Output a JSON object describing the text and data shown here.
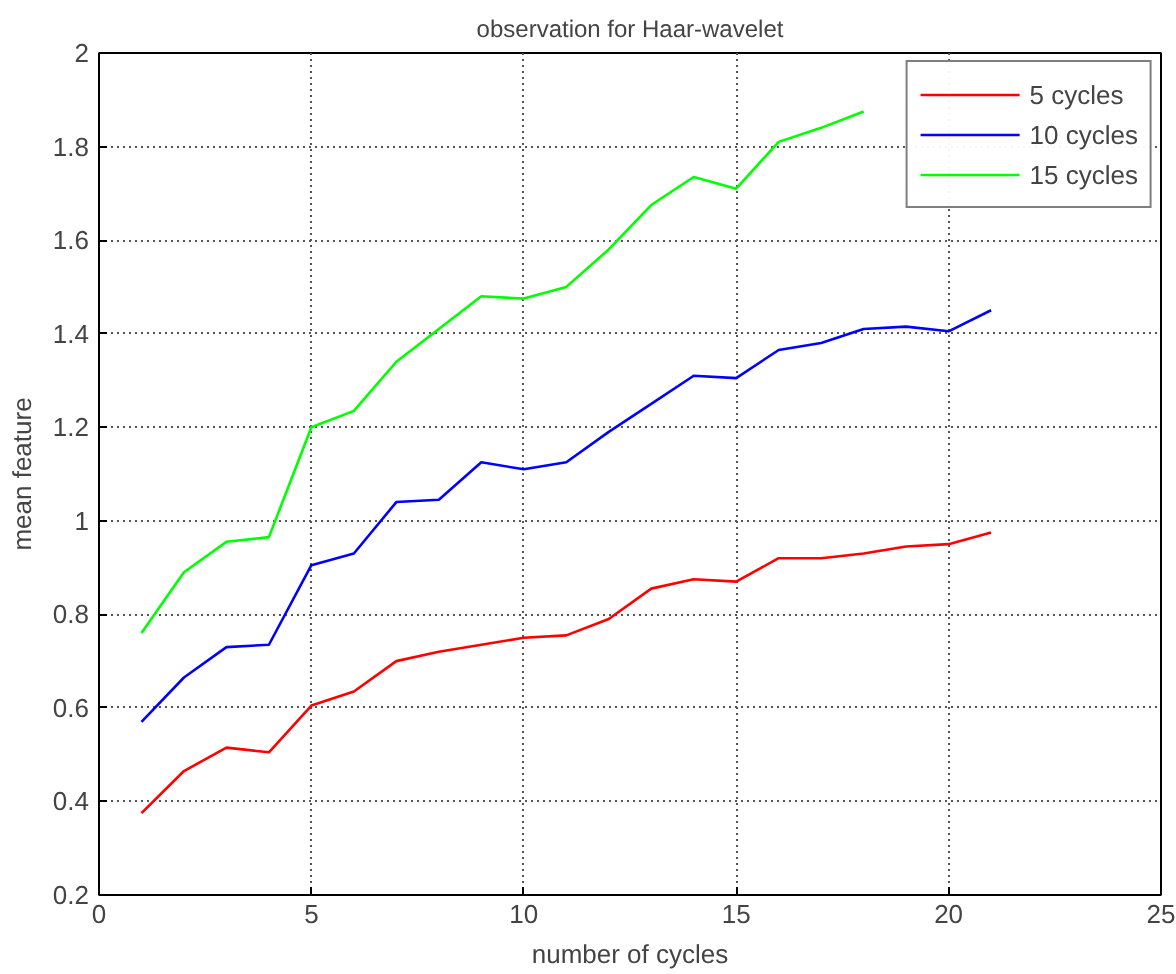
{
  "chart_data": {
    "type": "line",
    "title": "observation for Haar-wavelet",
    "xlabel": "number of cycles",
    "ylabel": "mean feature",
    "x": [
      1,
      2,
      3,
      4,
      5,
      6,
      7,
      8,
      9,
      10,
      11,
      12,
      13,
      14,
      15,
      16,
      17,
      18,
      19,
      20,
      21
    ],
    "series": [
      {
        "name": "5 cycles",
        "color": "#ff0000",
        "values": [
          0.375,
          0.465,
          0.515,
          0.505,
          0.605,
          0.635,
          0.7,
          0.72,
          0.735,
          0.75,
          0.755,
          0.79,
          0.855,
          0.875,
          0.87,
          0.92,
          0.92,
          0.93,
          0.945,
          0.95,
          0.975
        ]
      },
      {
        "name": "10 cycles",
        "color": "#0000ff",
        "values": [
          0.57,
          0.665,
          0.73,
          0.735,
          0.905,
          0.93,
          1.04,
          1.045,
          1.125,
          1.11,
          1.125,
          1.19,
          1.25,
          1.31,
          1.305,
          1.365,
          1.38,
          1.41,
          1.415,
          1.405,
          1.45
        ]
      },
      {
        "name": "15 cycles",
        "color": "#00ff00",
        "values": [
          0.76,
          0.89,
          0.955,
          0.965,
          1.2,
          1.235,
          1.34,
          1.41,
          1.48,
          1.475,
          1.5,
          1.58,
          1.675,
          1.735,
          1.71,
          1.81,
          1.84,
          1.875,
          null,
          null,
          null
        ]
      }
    ],
    "xlim": [
      0,
      25
    ],
    "xticks": [
      0,
      5,
      10,
      15,
      20,
      25
    ],
    "ylim": [
      0.2,
      2
    ],
    "yticks": [
      0.2,
      0.4,
      0.6,
      0.8,
      1,
      1.2,
      1.4,
      1.6,
      1.8,
      2
    ],
    "grid": true,
    "legend": "top right",
    "line_style": "solid",
    "marker": "none"
  }
}
